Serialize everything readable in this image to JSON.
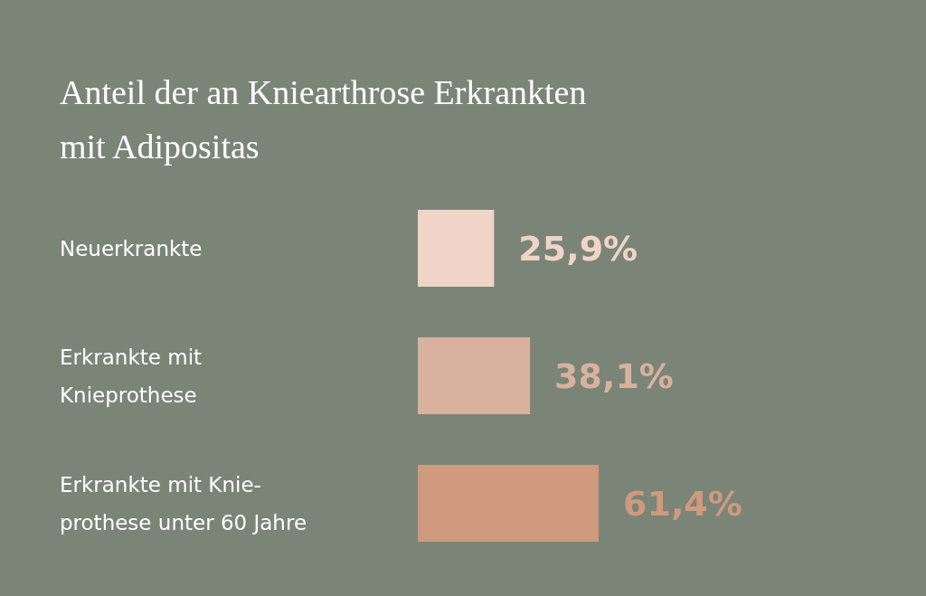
{
  "chart_data": {
    "type": "bar",
    "orientation": "horizontal",
    "title": "Anteil der an Kniearthrose Erkrankten\nmit Adipositas",
    "categories": [
      "Neuerkrankte",
      "Erkrankte mit\nKnieprothese",
      "Erkrankte mit Knie-\nprothese unter 60 Jahre"
    ],
    "values": [
      25.9,
      38.1,
      61.4
    ],
    "colors": [
      "#efd4c7",
      "#d8b29e",
      "#cf9a7d"
    ],
    "value_labels": [
      "25,9%",
      "38,1%",
      "61,4%"
    ]
  }
}
